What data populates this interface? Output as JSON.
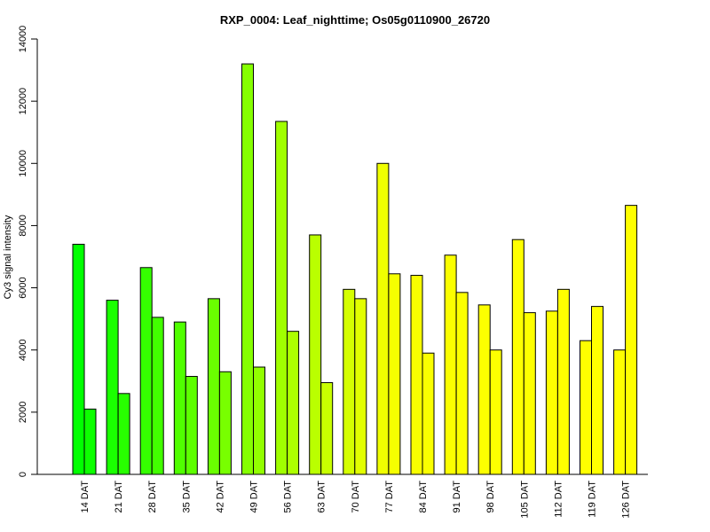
{
  "chart_data": {
    "type": "bar",
    "title": "RXP_0004: Leaf_nighttime; Os05g0110900_26720",
    "xlabel": "",
    "ylabel": "Cy3 signal intensity",
    "ylim": [
      0,
      14000
    ],
    "yticks": [
      0,
      2000,
      4000,
      6000,
      8000,
      10000,
      12000,
      14000
    ],
    "categories": [
      "14 DAT",
      "21 DAT",
      "28 DAT",
      "35 DAT",
      "42 DAT",
      "49 DAT",
      "56 DAT",
      "63 DAT",
      "70 DAT",
      "77 DAT",
      "84 DAT",
      "91 DAT",
      "98 DAT",
      "105 DAT",
      "112 DAT",
      "119 DAT",
      "126 DAT"
    ],
    "series": [
      {
        "values": [
          7400,
          5600,
          6650,
          4900,
          5650,
          13200,
          11350,
          7700,
          5950,
          10000,
          6400,
          7050,
          5450,
          7550,
          5250,
          4300,
          4000
        ]
      },
      {
        "values": [
          2100,
          2600,
          5050,
          3150,
          3300,
          3450,
          4600,
          2950,
          5650,
          6450,
          3900,
          5850,
          4000,
          5200,
          5950,
          5400,
          8650
        ]
      }
    ],
    "colors": [
      "#00ff00",
      "#0dff00",
      "#1aff00",
      "#28ff00",
      "#35ff00",
      "#42ff00",
      "#50ff00",
      "#5dff00",
      "#6aff00",
      "#78ff00",
      "#85ff00",
      "#92ff00",
      "#a0ff00",
      "#adff00",
      "#baff00",
      "#c8ff00",
      "#d5ff00",
      "#e2ff00",
      "#f0ff00",
      "#f5ff00",
      "#f8ff00",
      "#faff00",
      "#fbff00",
      "#fcff00",
      "#fdff00",
      "#fdff00",
      "#feff00",
      "#feff00",
      "#feff00",
      "#ffff00",
      "#ffff00",
      "#ffff00",
      "#ffff00",
      "#ffff00"
    ],
    "grid": false,
    "legend": "none"
  }
}
